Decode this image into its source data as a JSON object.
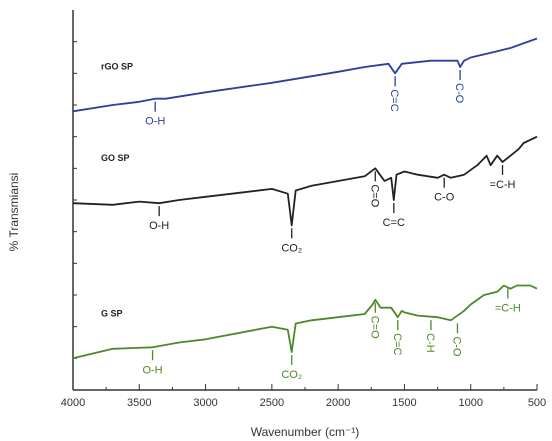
{
  "chart_data": {
    "type": "line",
    "title": "",
    "xlabel": "Wavenumber (cm⁻¹)",
    "ylabel": "% Transmiansi",
    "xlim": [
      4000,
      500
    ],
    "x_reversed": true,
    "x_ticks": [
      4000,
      3500,
      3000,
      2500,
      2000,
      1500,
      1000,
      500
    ],
    "y_ticks_labeled": false,
    "grid": false,
    "colors": {
      "rGO SP": "#2b3f9e",
      "GO SP": "#222222",
      "G SP": "#4a8a28",
      "axis": "#333333"
    },
    "series": [
      {
        "name": "rGO SP",
        "x": [
          4000,
          3700,
          3500,
          3380,
          3300,
          3000,
          2500,
          2000,
          1800,
          1620,
          1570,
          1520,
          1300,
          1100,
          1080,
          1050,
          1000,
          800,
          700,
          500
        ],
        "y": [
          8.8,
          9.0,
          9.1,
          9.2,
          9.2,
          9.4,
          9.7,
          10.05,
          10.2,
          10.3,
          10.0,
          10.3,
          10.4,
          10.4,
          10.2,
          10.4,
          10.5,
          10.7,
          10.8,
          11.1
        ]
      },
      {
        "name": "GO SP",
        "x": [
          4000,
          3700,
          3500,
          3350,
          3200,
          3000,
          2500,
          2380,
          2350,
          2320,
          2200,
          2000,
          1800,
          1720,
          1650,
          1600,
          1580,
          1560,
          1500,
          1400,
          1250,
          1200,
          1150,
          1050,
          950,
          880,
          850,
          800,
          760,
          700,
          640,
          600,
          500
        ],
        "y": [
          5.9,
          5.85,
          5.95,
          5.9,
          6.0,
          6.1,
          6.35,
          6.2,
          5.2,
          6.3,
          6.45,
          6.6,
          6.75,
          7.0,
          6.6,
          6.7,
          6.0,
          6.8,
          6.9,
          6.8,
          6.7,
          6.8,
          6.7,
          6.8,
          7.1,
          7.4,
          7.1,
          7.4,
          7.2,
          7.4,
          7.6,
          7.8,
          8.0
        ]
      },
      {
        "name": "G SP",
        "x": [
          4000,
          3700,
          3400,
          3200,
          3000,
          2500,
          2380,
          2350,
          2320,
          2200,
          2000,
          1800,
          1740,
          1720,
          1680,
          1600,
          1550,
          1520,
          1500,
          1400,
          1250,
          1150,
          1050,
          1000,
          900,
          800,
          750,
          700,
          650,
          600,
          550,
          500
        ],
        "y": [
          1.0,
          1.3,
          1.35,
          1.5,
          1.6,
          2.0,
          1.9,
          1.2,
          2.1,
          2.2,
          2.3,
          2.4,
          2.7,
          2.85,
          2.6,
          2.6,
          2.3,
          2.5,
          2.45,
          2.35,
          2.3,
          2.2,
          2.5,
          2.7,
          3.0,
          3.1,
          3.3,
          3.2,
          3.3,
          3.3,
          3.3,
          3.2
        ]
      }
    ],
    "annotations": [
      {
        "series": "rGO SP",
        "text": "O-H",
        "x": 3380,
        "y": 9.2
      },
      {
        "series": "rGO SP",
        "text": "C=C",
        "x": 1570,
        "y": 10.0,
        "vertical": true
      },
      {
        "series": "rGO SP",
        "text": "C-O",
        "x": 1080,
        "y": 10.2,
        "vertical": true
      },
      {
        "series": "GO SP",
        "text": "O-H",
        "x": 3350,
        "y": 5.9
      },
      {
        "series": "GO SP",
        "text": "CO₂",
        "x": 2350,
        "y": 5.2
      },
      {
        "series": "GO SP",
        "text": "C=O",
        "x": 1720,
        "y": 7.0,
        "vertical": true
      },
      {
        "series": "GO SP",
        "text": "C=C",
        "x": 1580,
        "y": 6.0
      },
      {
        "series": "GO SP",
        "text": "C-O",
        "x": 1200,
        "y": 6.8
      },
      {
        "series": "GO SP",
        "text": "=C-H",
        "x": 760,
        "y": 7.2
      },
      {
        "series": "G SP",
        "text": "O-H",
        "x": 3400,
        "y": 1.35
      },
      {
        "series": "G SP",
        "text": "CO₂",
        "x": 2350,
        "y": 1.2
      },
      {
        "series": "G SP",
        "text": "C=O",
        "x": 1720,
        "y": 2.85,
        "vertical": true
      },
      {
        "series": "G SP",
        "text": "C=C",
        "x": 1550,
        "y": 2.3,
        "vertical": true
      },
      {
        "series": "G SP",
        "text": "C-H",
        "x": 1300,
        "y": 2.3,
        "vertical": true
      },
      {
        "series": "G SP",
        "text": "C-O",
        "x": 1100,
        "y": 2.2,
        "vertical": true
      },
      {
        "series": "G SP",
        "text": "=C-H",
        "x": 720,
        "y": 3.3
      }
    ]
  }
}
